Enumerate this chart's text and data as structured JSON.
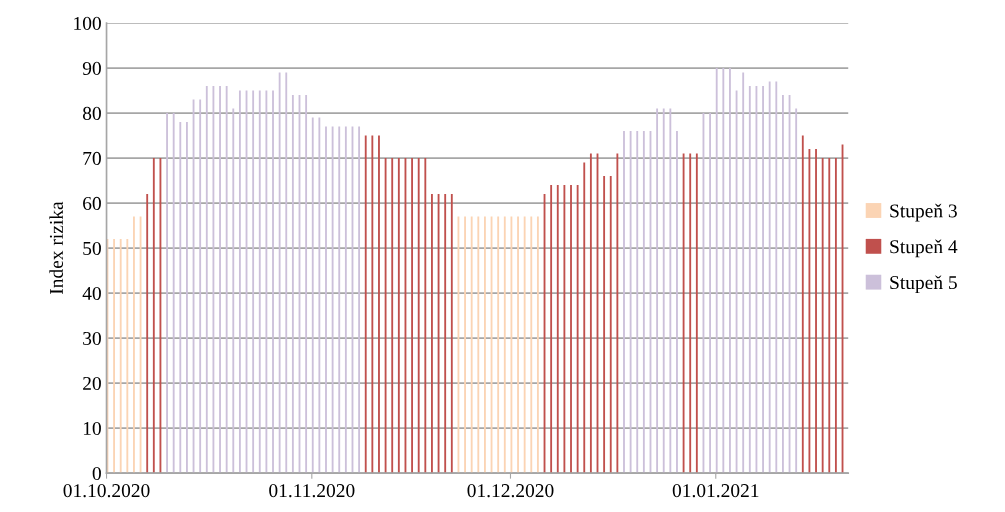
{
  "chart_data": {
    "type": "bar",
    "ylabel": "Index rizika",
    "xlim": [
      "2020-10-01",
      "2021-01-21"
    ],
    "xticks": [
      {
        "value": "2020-10-01",
        "label": "01.10.2020"
      },
      {
        "value": "2020-11-01",
        "label": "01.11.2020"
      },
      {
        "value": "2020-12-01",
        "label": "01.12.2020"
      },
      {
        "value": "2021-01-01",
        "label": "01.01.2021"
      }
    ],
    "ylim": [
      0,
      100
    ],
    "yticks": [
      0,
      10,
      20,
      30,
      40,
      50,
      60,
      70,
      80,
      90,
      100
    ],
    "grid": "y",
    "legend": "right",
    "series": [
      {
        "name": "Stupeň 3",
        "color": "#fbd4b4",
        "x": [
          "2020-10-01",
          "2020-10-02",
          "2020-10-03",
          "2020-10-04",
          "2020-10-05",
          "2020-10-06",
          "2020-11-23",
          "2020-11-24",
          "2020-11-25",
          "2020-11-26",
          "2020-11-27",
          "2020-11-28",
          "2020-11-29",
          "2020-11-30",
          "2020-12-01",
          "2020-12-02",
          "2020-12-03",
          "2020-12-04",
          "2020-12-05"
        ],
        "values": [
          52,
          52,
          52,
          52,
          57,
          57,
          57,
          57,
          57,
          57,
          57,
          57,
          57,
          57,
          57,
          57,
          57,
          57,
          57
        ]
      },
      {
        "name": "Stupeň 4",
        "color": "#c0504d",
        "x": [
          "2020-10-07",
          "2020-10-08",
          "2020-10-09",
          "2020-11-09",
          "2020-11-10",
          "2020-11-11",
          "2020-11-12",
          "2020-11-13",
          "2020-11-14",
          "2020-11-15",
          "2020-11-16",
          "2020-11-17",
          "2020-11-18",
          "2020-11-19",
          "2020-11-20",
          "2020-11-21",
          "2020-11-22",
          "2020-12-06",
          "2020-12-07",
          "2020-12-08",
          "2020-12-09",
          "2020-12-10",
          "2020-12-11",
          "2020-12-12",
          "2020-12-13",
          "2020-12-14",
          "2020-12-15",
          "2020-12-16",
          "2020-12-17",
          "2020-12-27",
          "2020-12-28",
          "2020-12-29",
          "2021-01-14",
          "2021-01-15",
          "2021-01-16",
          "2021-01-17",
          "2021-01-18",
          "2021-01-19",
          "2021-01-20"
        ],
        "values": [
          62,
          70,
          70,
          75,
          75,
          75,
          70,
          70,
          70,
          70,
          70,
          70,
          70,
          62,
          62,
          62,
          62,
          62,
          64,
          64,
          64,
          64,
          64,
          69,
          71,
          71,
          66,
          66,
          71,
          71,
          71,
          71,
          75,
          72,
          72,
          70,
          70,
          70,
          73
        ]
      },
      {
        "name": "Stupeň 5",
        "color": "#ccc0da",
        "x": [
          "2020-10-10",
          "2020-10-11",
          "2020-10-12",
          "2020-10-13",
          "2020-10-14",
          "2020-10-15",
          "2020-10-16",
          "2020-10-17",
          "2020-10-18",
          "2020-10-19",
          "2020-10-20",
          "2020-10-21",
          "2020-10-22",
          "2020-10-23",
          "2020-10-24",
          "2020-10-25",
          "2020-10-26",
          "2020-10-27",
          "2020-10-28",
          "2020-10-29",
          "2020-10-30",
          "2020-10-31",
          "2020-11-01",
          "2020-11-02",
          "2020-11-03",
          "2020-11-04",
          "2020-11-05",
          "2020-11-06",
          "2020-11-07",
          "2020-11-08",
          "2020-12-18",
          "2020-12-19",
          "2020-12-20",
          "2020-12-21",
          "2020-12-22",
          "2020-12-23",
          "2020-12-24",
          "2020-12-25",
          "2020-12-26",
          "2020-12-30",
          "2020-12-31",
          "2021-01-01",
          "2021-01-02",
          "2021-01-03",
          "2021-01-04",
          "2021-01-05",
          "2021-01-06",
          "2021-01-07",
          "2021-01-08",
          "2021-01-09",
          "2021-01-10",
          "2021-01-11",
          "2021-01-12",
          "2021-01-13"
        ],
        "values": [
          80,
          80,
          78,
          78,
          83,
          83,
          86,
          86,
          86,
          86,
          81,
          85,
          85,
          85,
          85,
          85,
          85,
          89,
          89,
          84,
          84,
          84,
          79,
          79,
          77,
          77,
          77,
          77,
          77,
          77,
          76,
          76,
          76,
          76,
          76,
          81,
          81,
          81,
          76,
          80,
          80,
          90,
          90,
          90,
          85,
          89,
          86,
          86,
          86,
          87,
          87,
          84,
          84,
          81
        ]
      }
    ]
  }
}
